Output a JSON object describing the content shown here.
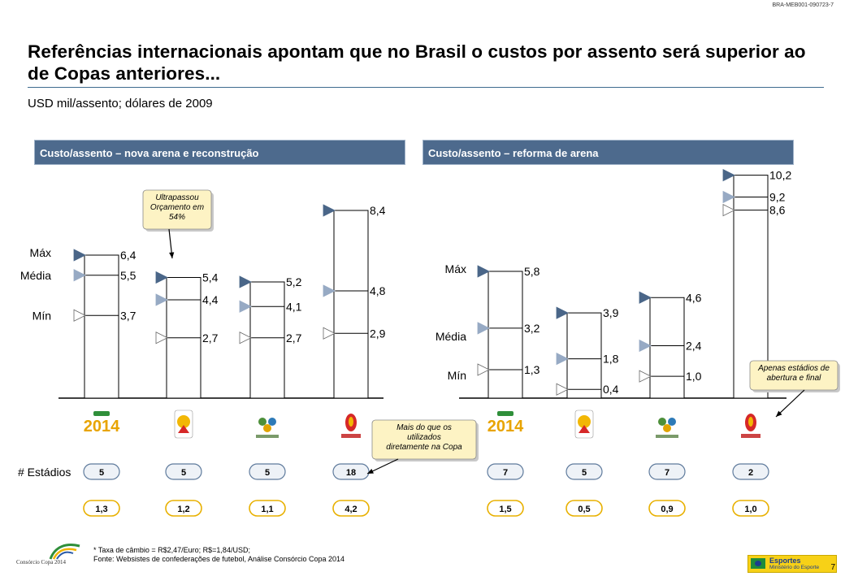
{
  "doc_code": "BRA-MEB001-090723-7",
  "title": "Referências internacionais apontam que no Brasil o custos por assento será superior ao de Copas anteriores...",
  "subtitle": "USD mil/assento; dólares de 2009",
  "page_number": "7",
  "footnote_line1": "* Taxa de câmbio = R$2,47/Euro; R$=1,84/USD;",
  "footnote_line2": "Fonte: Websistes de confederações de futebol, Análise Consórcio Copa 2014",
  "brand_caption": "Consórcio Copa 2014",
  "ministry": {
    "line1": "Esportes",
    "line2": "Ministério do Esporte"
  },
  "row_label_stadiums": "# Estádios",
  "labels": {
    "max": "Máx",
    "mean": "Média",
    "min": "Mín"
  },
  "colors": {
    "panel_header": "#4d6a8d",
    "marker_max": "#4a6688",
    "marker_mean": "#97aac4",
    "marker_min": "#ffffff",
    "oval_bottom_border": "#e8b000"
  },
  "chart_data": [
    {
      "type": "range",
      "panel_title": "Custo/assento – nova arena e reconstrução",
      "categories": [
        "Brasil 2014",
        "South Africa 2010",
        "Germany 2006",
        "Korea Japan 2002"
      ],
      "series": [
        {
          "name": "Máx",
          "values": [
            6.4,
            5.4,
            5.2,
            8.4
          ],
          "labels": [
            "6,4",
            "5,4",
            "5,2",
            "8,4"
          ]
        },
        {
          "name": "Média",
          "values": [
            5.5,
            4.4,
            4.1,
            4.8
          ],
          "labels": [
            "5,5",
            "4,4",
            "4,1",
            "4,8"
          ]
        },
        {
          "name": "Mín",
          "values": [
            3.7,
            2.7,
            2.7,
            2.9
          ],
          "labels": [
            "3,7",
            "2,7",
            "2,7",
            "2,9"
          ]
        }
      ],
      "stadiums": [
        "5",
        "5",
        "5",
        "18"
      ],
      "secondary": [
        "1,3",
        "1,2",
        "1,1",
        "4,2"
      ],
      "callouts": [
        {
          "text": "Ultrapassou Orçamento em 54%",
          "target": "South Africa 2010"
        },
        {
          "text": "Mais do que os utilizados diretamente na Copa",
          "target": "Korea Japan 2002"
        }
      ]
    },
    {
      "type": "range",
      "panel_title": "Custo/assento – reforma de arena",
      "categories": [
        "Brasil 2014",
        "South Africa 2010",
        "Germany 2006",
        "Korea Japan 2002"
      ],
      "series": [
        {
          "name": "Máx",
          "values": [
            5.8,
            3.9,
            4.6,
            10.2
          ],
          "labels": [
            "5,8",
            "3,9",
            "4,6",
            "10,2"
          ]
        },
        {
          "name": "Média",
          "values": [
            3.2,
            1.8,
            2.4,
            9.2
          ],
          "labels": [
            "3,2",
            "1,8",
            "2,4",
            "9,2"
          ]
        },
        {
          "name": "Mín",
          "values": [
            1.3,
            0.4,
            1.0,
            8.6
          ],
          "labels": [
            "1,3",
            "0,4",
            "1,0",
            "8,6"
          ]
        }
      ],
      "stadiums": [
        "7",
        "5",
        "7",
        "2"
      ],
      "secondary": [
        "1,5",
        "0,5",
        "0,9",
        "1,0"
      ],
      "callouts": [
        {
          "text": "Apenas estádios de abertura e final",
          "target": "Korea Japan 2002"
        }
      ]
    }
  ]
}
